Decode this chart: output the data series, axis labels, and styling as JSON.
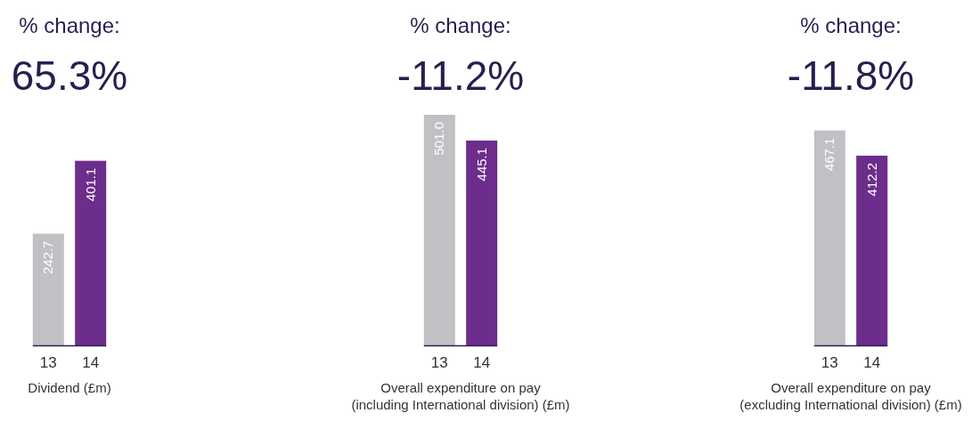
{
  "chart_data": [
    {
      "type": "bar",
      "title": "% change:",
      "subtitle": "65.3%",
      "xlabel": "Dividend (£m)",
      "categories": [
        "13",
        "14"
      ],
      "values": [
        242.7,
        401.1
      ],
      "value_labels": [
        "242.7",
        "401.1"
      ],
      "colors": [
        "#c1c0c5",
        "#6c2d8c"
      ]
    },
    {
      "type": "bar",
      "title": "% change:",
      "subtitle": "-11.2%",
      "xlabel": "Overall expenditure on pay\n(including International division) (£m)",
      "categories": [
        "13",
        "14"
      ],
      "values": [
        501.0,
        445.1
      ],
      "value_labels": [
        "501.0",
        "445.1"
      ],
      "colors": [
        "#c1c0c5",
        "#6c2d8c"
      ]
    },
    {
      "type": "bar",
      "title": "% change:",
      "subtitle": "-11.8%",
      "xlabel": "Overall expenditure on pay\n(excluding International division) (£m)",
      "categories": [
        "13",
        "14"
      ],
      "values": [
        467.1,
        412.2
      ],
      "value_labels": [
        "467.1",
        "412.2"
      ],
      "colors": [
        "#c1c0c5",
        "#6c2d8c"
      ]
    }
  ]
}
